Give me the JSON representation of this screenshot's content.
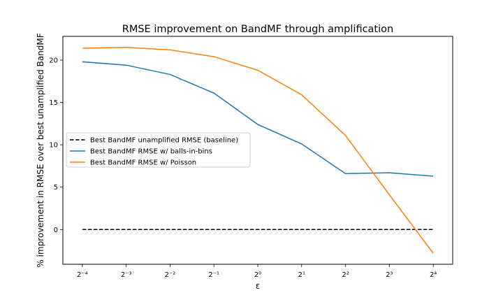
{
  "chart_data": {
    "type": "line",
    "title": "RMSE improvement on BandMF through amplification",
    "xlabel": "ε",
    "ylabel": "% improvement in RMSE over best unamplified BandMF",
    "x_scale": "log2",
    "x": [
      0.0625,
      0.125,
      0.25,
      0.5,
      1,
      2,
      4,
      8,
      16
    ],
    "x_tick_labels": [
      "2⁻⁴",
      "2⁻³",
      "2⁻²",
      "2⁻¹",
      "2⁰",
      "2¹",
      "2²",
      "2³",
      "2⁴"
    ],
    "ylim": [
      -4.1,
      22.8
    ],
    "y_ticks": [
      0,
      5,
      10,
      15,
      20
    ],
    "y_tick_labels": [
      "0",
      "5",
      "10",
      "15",
      "20"
    ],
    "grid": false,
    "legend_position": "center-left",
    "series": [
      {
        "name": "Best BandMF unamplified RMSE (baseline)",
        "color": "#000000",
        "style": "dashed",
        "values": [
          0,
          0,
          0,
          0,
          0,
          0,
          0,
          0,
          0
        ]
      },
      {
        "name": "Best BandMF RMSE w/ balls-in-bins",
        "color": "#1f77b4",
        "style": "solid",
        "values": [
          19.8,
          19.4,
          18.3,
          16.1,
          12.4,
          10.1,
          6.6,
          6.7,
          6.3
        ]
      },
      {
        "name": "Best BandMF RMSE w/ Poisson",
        "color": "#ff7f0e",
        "style": "solid",
        "values": [
          21.4,
          21.5,
          21.2,
          20.4,
          18.8,
          15.9,
          11.1,
          4.1,
          -2.8
        ]
      }
    ]
  }
}
